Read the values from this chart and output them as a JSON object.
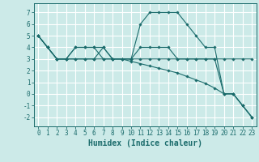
{
  "xlabel": "Humidex (Indice chaleur)",
  "bg_color": "#cceae8",
  "line_color": "#1a6b6b",
  "grid_color": "#ffffff",
  "xlim": [
    -0.5,
    23.5
  ],
  "ylim": [
    -2.8,
    7.8
  ],
  "yticks": [
    -2,
    -1,
    0,
    1,
    2,
    3,
    4,
    5,
    6,
    7
  ],
  "xticks": [
    0,
    1,
    2,
    3,
    4,
    5,
    6,
    7,
    8,
    9,
    10,
    11,
    12,
    13,
    14,
    15,
    16,
    17,
    18,
    19,
    20,
    21,
    22,
    23
  ],
  "lines": [
    {
      "x": [
        0,
        1,
        2,
        3,
        4,
        5,
        6,
        7,
        8,
        9,
        10,
        11,
        12,
        13,
        14,
        15,
        16,
        17,
        18,
        19,
        20,
        21,
        22,
        23
      ],
      "y": [
        5,
        4,
        3,
        3,
        4,
        4,
        4,
        4,
        3,
        3,
        3,
        6,
        7,
        7,
        7,
        7,
        6,
        5,
        4,
        4,
        0,
        0,
        -1,
        -2
      ]
    },
    {
      "x": [
        0,
        1,
        2,
        3,
        4,
        5,
        6,
        7,
        8,
        9,
        10,
        11,
        12,
        13,
        14,
        15,
        16,
        17,
        18,
        19,
        20,
        21,
        22,
        23
      ],
      "y": [
        5,
        4,
        3,
        3,
        4,
        4,
        4,
        3,
        3,
        3,
        3,
        4,
        4,
        4,
        4,
        3,
        3,
        3,
        3,
        3,
        3,
        3,
        3,
        3
      ]
    },
    {
      "x": [
        0,
        1,
        2,
        3,
        4,
        5,
        6,
        7,
        8,
        9,
        10,
        11,
        12,
        13,
        14,
        15,
        16,
        17,
        18,
        19,
        20,
        21,
        22,
        23
      ],
      "y": [
        5,
        4,
        3,
        3,
        3,
        3,
        3,
        4,
        3,
        3,
        3,
        3,
        3,
        3,
        3,
        3,
        3,
        3,
        3,
        3,
        0,
        0,
        -1,
        -2
      ]
    },
    {
      "x": [
        0,
        1,
        2,
        3,
        4,
        5,
        6,
        7,
        8,
        9,
        10,
        11,
        12,
        13,
        14,
        15,
        16,
        17,
        18,
        19,
        20,
        21,
        22,
        23
      ],
      "y": [
        5,
        4,
        3,
        3,
        3,
        3,
        3,
        3,
        3,
        3,
        2.8,
        2.6,
        2.4,
        2.2,
        2.0,
        1.8,
        1.5,
        1.2,
        0.9,
        0.5,
        0,
        0,
        -1,
        -2
      ]
    }
  ],
  "marker": "D",
  "markersize": 1.8,
  "linewidth": 0.8,
  "tick_fontsize": 5.5,
  "xlabel_fontsize": 7
}
